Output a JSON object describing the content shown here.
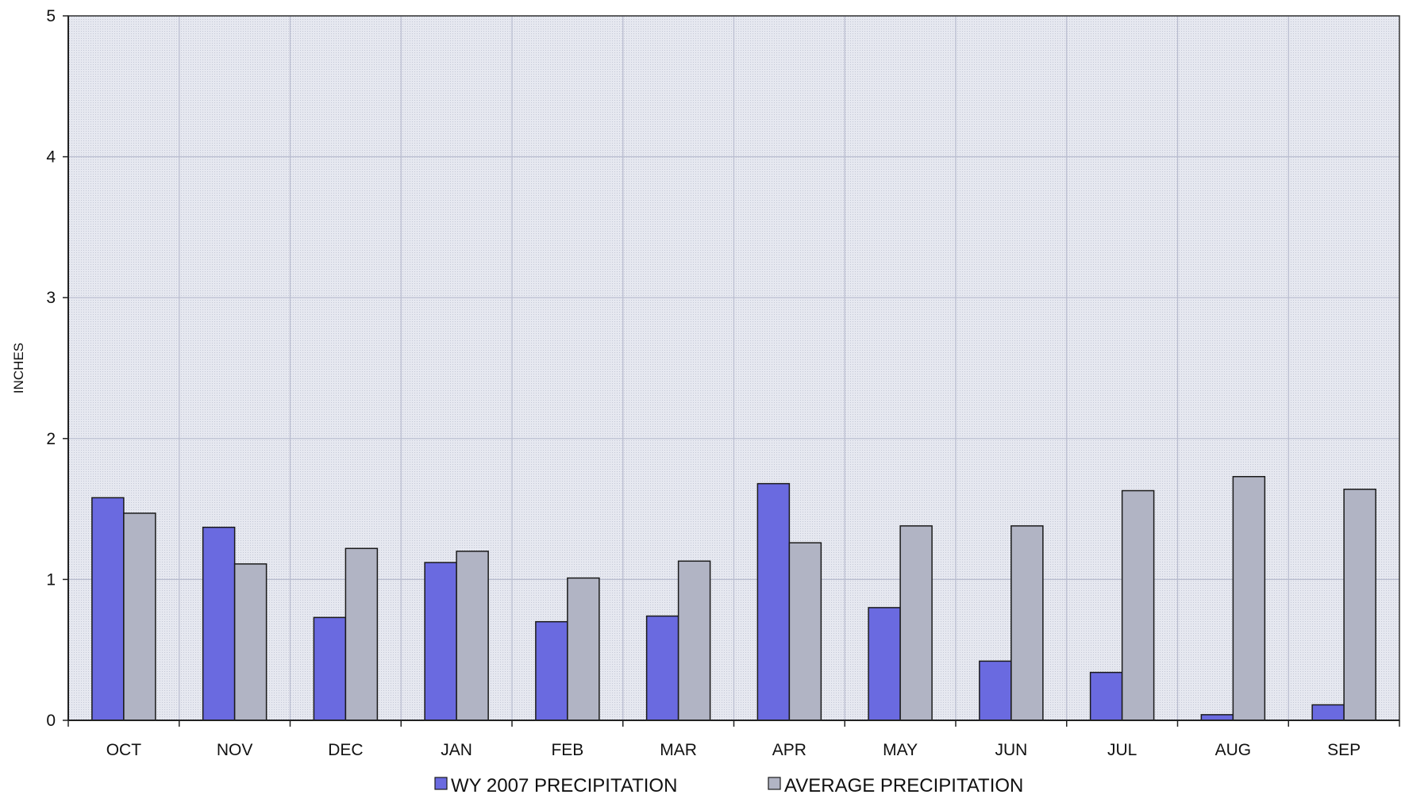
{
  "chart_data": {
    "type": "bar",
    "title": "",
    "xlabel": "",
    "ylabel": "INCHES",
    "ylim": [
      0,
      5
    ],
    "yticks": [
      "0",
      "1",
      "2",
      "3",
      "4",
      "5"
    ],
    "grid": true,
    "legend_position": "bottom",
    "categories": [
      "OCT",
      "NOV",
      "DEC",
      "JAN",
      "FEB",
      "MAR",
      "APR",
      "MAY",
      "JUN",
      "JUL",
      "AUG",
      "SEP"
    ],
    "series": [
      {
        "name": "WY 2007 PRECIPITATION",
        "color": "#6a6ae0",
        "values": [
          1.58,
          1.37,
          0.73,
          1.12,
          0.7,
          0.74,
          1.68,
          0.8,
          0.42,
          0.34,
          0.04,
          0.11
        ]
      },
      {
        "name": "AVERAGE PRECIPITATION",
        "color": "#b1b4c4",
        "values": [
          1.47,
          1.11,
          1.22,
          1.2,
          1.01,
          1.13,
          1.26,
          1.38,
          1.38,
          1.63,
          1.73,
          1.64
        ]
      }
    ],
    "plot_background": "#e3e5ee",
    "gridline_color": "#b8bccf"
  }
}
